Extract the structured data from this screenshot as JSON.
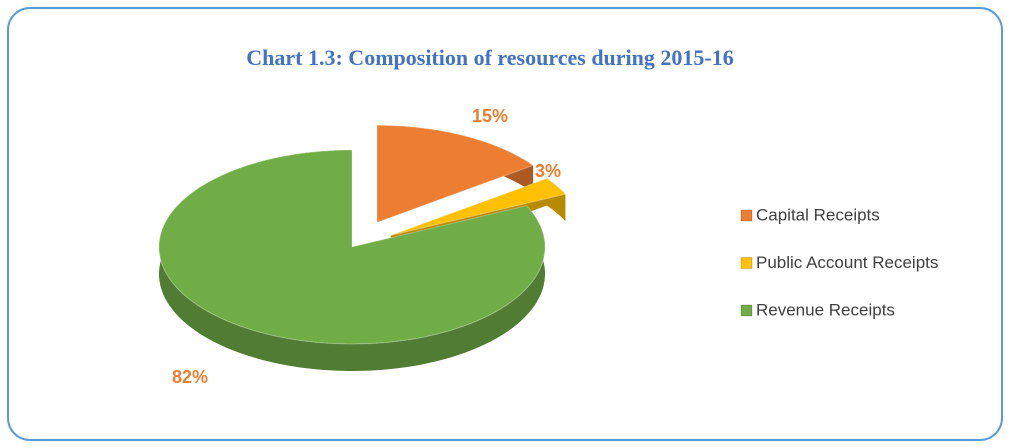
{
  "chart_data": {
    "type": "pie",
    "title": "Chart 1.3: Composition of resources during 2015-16",
    "categories": [
      "Capital Receipts",
      "Public Account Receipts",
      "Revenue Receipts"
    ],
    "values": [
      15,
      3,
      82
    ],
    "value_labels": [
      "15%",
      "3%",
      "82%"
    ],
    "colors": [
      "#ed7d31",
      "#ffc000",
      "#70ad47"
    ],
    "legend": "right"
  }
}
